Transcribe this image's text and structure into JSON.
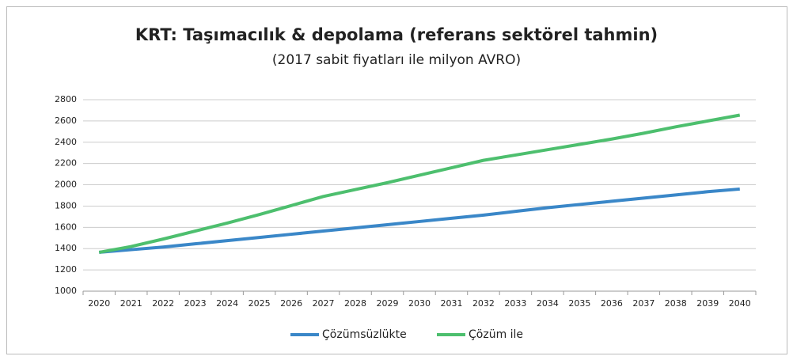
{
  "chart_data": {
    "type": "line",
    "title": "KRT: Taşımacılık & depolama (referans sektörel tahmin)",
    "subtitle": "(2017 sabit fiyatları ile milyon AVRO)",
    "categories": [
      "2020",
      "2021",
      "2022",
      "2023",
      "2024",
      "2025",
      "2026",
      "2027",
      "2028",
      "2029",
      "2030",
      "2031",
      "2032",
      "2033",
      "2034",
      "2035",
      "2036",
      "2037",
      "2038",
      "2039",
      "2040"
    ],
    "series": [
      {
        "name": "Çözümsüzlükte",
        "color": "#3a87c8",
        "values": [
          1365,
          1390,
          1415,
          1445,
          1475,
          1505,
          1535,
          1565,
          1595,
          1625,
          1655,
          1685,
          1715,
          1750,
          1785,
          1815,
          1845,
          1875,
          1905,
          1935,
          1960
        ]
      },
      {
        "name": "Çözüm ile",
        "color": "#4dbf6e",
        "values": [
          1365,
          1420,
          1490,
          1565,
          1640,
          1720,
          1805,
          1890,
          1955,
          2020,
          2090,
          2160,
          2230,
          2280,
          2330,
          2380,
          2430,
          2485,
          2545,
          2600,
          2655
        ]
      }
    ],
    "ylim": [
      1000,
      2800
    ],
    "yticks": [
      1000,
      1200,
      1400,
      1600,
      1800,
      2000,
      2200,
      2400,
      2600,
      2800
    ],
    "grid": true,
    "legend": "bottom"
  }
}
